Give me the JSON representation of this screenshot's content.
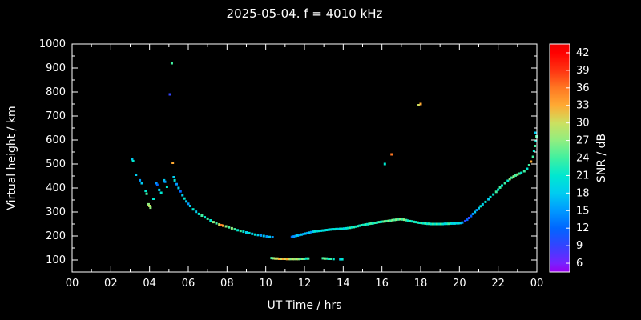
{
  "colors": {
    "background": "#000000",
    "axis": "#ffffff",
    "text": "#ffffff"
  },
  "chart_data": {
    "type": "scatter",
    "title": "2025-05-04. f = 4010 kHz",
    "xlabel": "UT Time / hrs",
    "ylabel": "Virtual height / km",
    "colorbar_label": "SNR / dB",
    "xlim": [
      0,
      24
    ],
    "ylim": [
      50,
      1000
    ],
    "x_tick_labels": [
      "00",
      "02",
      "04",
      "06",
      "08",
      "10",
      "12",
      "14",
      "16",
      "18",
      "20",
      "22",
      "00"
    ],
    "x_major_step": 2,
    "x_minor_step": 1,
    "y_ticks": [
      100,
      200,
      300,
      400,
      500,
      600,
      700,
      800,
      900,
      1000
    ],
    "y_minor_step": 50,
    "colorbar": {
      "min": 4.5,
      "max": 43.5,
      "ticks": [
        6,
        9,
        12,
        15,
        18,
        21,
        24,
        27,
        30,
        33,
        36,
        39,
        42
      ],
      "stops": [
        {
          "v": 4.5,
          "c": "#9900ee"
        },
        {
          "v": 6,
          "c": "#7722ff"
        },
        {
          "v": 9,
          "c": "#3344ff"
        },
        {
          "v": 12,
          "c": "#0066ff"
        },
        {
          "v": 15,
          "c": "#0099ff"
        },
        {
          "v": 18,
          "c": "#00ccf0"
        },
        {
          "v": 21,
          "c": "#00e8d0"
        },
        {
          "v": 24,
          "c": "#40f0a0"
        },
        {
          "v": 27,
          "c": "#90ee80"
        },
        {
          "v": 30,
          "c": "#cce060"
        },
        {
          "v": 33,
          "c": "#ffaa33"
        },
        {
          "v": 36,
          "c": "#ff7722"
        },
        {
          "v": 39,
          "c": "#ff3311"
        },
        {
          "v": 42,
          "c": "#ff0000"
        },
        {
          "v": 43.5,
          "c": "#ee0000"
        }
      ]
    },
    "point_fields": [
      "ut_hours",
      "virtual_height_km",
      "snr_db"
    ],
    "points": [
      [
        3.1,
        520,
        18
      ],
      [
        3.15,
        512,
        21
      ],
      [
        3.3,
        455,
        18
      ],
      [
        3.5,
        432,
        15
      ],
      [
        3.6,
        420,
        18
      ],
      [
        3.8,
        388,
        21
      ],
      [
        3.85,
        376,
        24
      ],
      [
        3.95,
        332,
        27
      ],
      [
        4.0,
        325,
        30
      ],
      [
        4.05,
        318,
        27
      ],
      [
        4.2,
        355,
        21
      ],
      [
        4.35,
        420,
        15
      ],
      [
        4.4,
        413,
        12
      ],
      [
        4.5,
        392,
        18
      ],
      [
        4.6,
        380,
        21
      ],
      [
        4.75,
        432,
        18
      ],
      [
        4.8,
        426,
        15
      ],
      [
        4.9,
        405,
        21
      ],
      [
        5.05,
        790,
        9
      ],
      [
        5.15,
        920,
        24
      ],
      [
        5.2,
        505,
        33
      ],
      [
        5.25,
        445,
        18
      ],
      [
        5.3,
        432,
        21
      ],
      [
        5.4,
        416,
        15
      ],
      [
        5.5,
        400,
        18
      ],
      [
        5.6,
        386,
        12
      ],
      [
        5.7,
        370,
        18
      ],
      [
        5.8,
        356,
        21
      ],
      [
        5.9,
        344,
        18
      ],
      [
        6.0,
        334,
        15
      ],
      [
        6.1,
        325,
        18
      ],
      [
        6.25,
        311,
        21
      ],
      [
        6.4,
        301,
        18
      ],
      [
        6.55,
        292,
        21
      ],
      [
        6.7,
        285,
        24
      ],
      [
        6.85,
        278,
        21
      ],
      [
        7.0,
        272,
        24
      ],
      [
        7.15,
        265,
        21
      ],
      [
        7.3,
        258,
        27
      ],
      [
        7.45,
        253,
        24
      ],
      [
        7.6,
        248,
        30
      ],
      [
        7.7,
        245,
        36
      ],
      [
        7.8,
        243,
        33
      ],
      [
        7.95,
        240,
        27
      ],
      [
        8.1,
        236,
        24
      ],
      [
        8.25,
        232,
        27
      ],
      [
        8.4,
        228,
        24
      ],
      [
        8.55,
        224,
        21
      ],
      [
        8.7,
        221,
        24
      ],
      [
        8.85,
        218,
        21
      ],
      [
        9.0,
        215,
        18
      ],
      [
        9.15,
        212,
        21
      ],
      [
        9.3,
        209,
        18
      ],
      [
        9.45,
        206,
        21
      ],
      [
        9.6,
        204,
        18
      ],
      [
        9.75,
        202,
        15
      ],
      [
        9.9,
        200,
        18
      ],
      [
        10.05,
        198,
        15
      ],
      [
        10.2,
        196,
        18
      ],
      [
        10.35,
        195,
        15
      ],
      [
        10.3,
        108,
        24
      ],
      [
        10.4,
        107,
        27
      ],
      [
        10.5,
        106,
        30
      ],
      [
        10.6,
        106,
        30
      ],
      [
        10.7,
        105,
        33
      ],
      [
        10.8,
        105,
        30
      ],
      [
        10.9,
        105,
        33
      ],
      [
        11.0,
        105,
        30
      ],
      [
        11.1,
        104,
        33
      ],
      [
        11.2,
        104,
        30
      ],
      [
        11.3,
        104,
        27
      ],
      [
        11.4,
        104,
        30
      ],
      [
        11.5,
        104,
        27
      ],
      [
        11.6,
        104,
        30
      ],
      [
        11.7,
        104,
        27
      ],
      [
        11.8,
        105,
        24
      ],
      [
        11.9,
        105,
        27
      ],
      [
        12.0,
        105,
        24
      ],
      [
        12.1,
        106,
        21
      ],
      [
        12.2,
        106,
        24
      ],
      [
        12.95,
        107,
        24
      ],
      [
        13.05,
        106,
        27
      ],
      [
        13.15,
        106,
        24
      ],
      [
        13.25,
        105,
        21
      ],
      [
        13.35,
        105,
        24
      ],
      [
        13.5,
        104,
        21
      ],
      [
        13.85,
        103,
        18
      ],
      [
        13.95,
        103,
        21
      ],
      [
        11.35,
        196,
        12
      ],
      [
        11.45,
        198,
        15
      ],
      [
        11.55,
        200,
        15
      ],
      [
        11.65,
        202,
        18
      ],
      [
        11.75,
        204,
        15
      ],
      [
        11.85,
        206,
        18
      ],
      [
        11.95,
        208,
        15
      ],
      [
        12.05,
        210,
        18
      ],
      [
        12.15,
        212,
        15
      ],
      [
        12.25,
        214,
        18
      ],
      [
        12.35,
        216,
        15
      ],
      [
        12.45,
        218,
        18
      ],
      [
        12.55,
        219,
        21
      ],
      [
        12.65,
        220,
        18
      ],
      [
        12.75,
        221,
        21
      ],
      [
        12.85,
        222,
        18
      ],
      [
        12.95,
        223,
        21
      ],
      [
        13.05,
        224,
        18
      ],
      [
        13.15,
        225,
        21
      ],
      [
        13.25,
        226,
        18
      ],
      [
        13.35,
        227,
        21
      ],
      [
        13.45,
        228,
        18
      ],
      [
        13.55,
        228,
        21
      ],
      [
        13.65,
        229,
        21
      ],
      [
        13.75,
        229,
        18
      ],
      [
        13.85,
        230,
        21
      ],
      [
        13.95,
        230,
        21
      ],
      [
        14.05,
        231,
        18
      ],
      [
        14.15,
        232,
        21
      ],
      [
        14.25,
        233,
        21
      ],
      [
        14.35,
        234,
        24
      ],
      [
        14.45,
        236,
        21
      ],
      [
        14.55,
        237,
        24
      ],
      [
        14.65,
        239,
        21
      ],
      [
        14.75,
        241,
        24
      ],
      [
        14.85,
        243,
        21
      ],
      [
        14.95,
        245,
        24
      ],
      [
        15.05,
        246,
        21
      ],
      [
        15.15,
        248,
        24
      ],
      [
        15.25,
        249,
        21
      ],
      [
        15.35,
        251,
        24
      ],
      [
        15.45,
        252,
        24
      ],
      [
        15.55,
        253,
        21
      ],
      [
        15.65,
        255,
        24
      ],
      [
        15.75,
        256,
        21
      ],
      [
        15.85,
        258,
        24
      ],
      [
        15.95,
        259,
        21
      ],
      [
        16.05,
        260,
        24
      ],
      [
        16.15,
        261,
        27
      ],
      [
        16.25,
        262,
        24
      ],
      [
        16.35,
        263,
        27
      ],
      [
        16.45,
        264,
        24
      ],
      [
        16.55,
        266,
        27
      ],
      [
        16.65,
        267,
        24
      ],
      [
        16.75,
        268,
        27
      ],
      [
        16.85,
        269,
        24
      ],
      [
        16.95,
        270,
        27
      ],
      [
        17.05,
        269,
        24
      ],
      [
        17.15,
        268,
        27
      ],
      [
        17.25,
        266,
        24
      ],
      [
        17.35,
        264,
        21
      ],
      [
        17.45,
        262,
        24
      ],
      [
        17.55,
        261,
        21
      ],
      [
        17.65,
        259,
        24
      ],
      [
        17.75,
        258,
        21
      ],
      [
        17.85,
        256,
        24
      ],
      [
        17.95,
        255,
        21
      ],
      [
        18.05,
        254,
        24
      ],
      [
        18.15,
        253,
        21
      ],
      [
        18.25,
        252,
        24
      ],
      [
        18.35,
        251,
        21
      ],
      [
        18.45,
        251,
        24
      ],
      [
        18.55,
        250,
        21
      ],
      [
        18.65,
        250,
        24
      ],
      [
        18.75,
        250,
        21
      ],
      [
        18.85,
        250,
        24
      ],
      [
        18.95,
        250,
        21
      ],
      [
        19.05,
        250,
        24
      ],
      [
        19.15,
        250,
        21
      ],
      [
        19.25,
        251,
        18
      ],
      [
        19.35,
        251,
        21
      ],
      [
        19.45,
        251,
        24
      ],
      [
        19.55,
        252,
        21
      ],
      [
        19.65,
        252,
        18
      ],
      [
        19.75,
        252,
        21
      ],
      [
        19.85,
        253,
        18
      ],
      [
        19.95,
        253,
        21
      ],
      [
        20.05,
        254,
        18
      ],
      [
        20.15,
        256,
        15
      ],
      [
        20.3,
        262,
        9
      ],
      [
        20.4,
        268,
        12
      ],
      [
        20.5,
        275,
        9
      ],
      [
        20.6,
        283,
        12
      ],
      [
        20.7,
        292,
        15
      ],
      [
        20.8,
        300,
        18
      ],
      [
        20.9,
        308,
        15
      ],
      [
        21.0,
        316,
        18
      ],
      [
        21.1,
        324,
        21
      ],
      [
        21.2,
        332,
        18
      ],
      [
        21.35,
        342,
        21
      ],
      [
        21.5,
        353,
        18
      ],
      [
        21.6,
        362,
        21
      ],
      [
        21.75,
        373,
        21
      ],
      [
        21.9,
        384,
        24
      ],
      [
        22.0,
        393,
        21
      ],
      [
        22.1,
        402,
        24
      ],
      [
        22.2,
        410,
        21
      ],
      [
        22.35,
        420,
        24
      ],
      [
        22.5,
        430,
        21
      ],
      [
        22.6,
        437,
        27
      ],
      [
        22.7,
        443,
        24
      ],
      [
        22.8,
        448,
        27
      ],
      [
        22.9,
        452,
        24
      ],
      [
        23.0,
        456,
        27
      ],
      [
        23.1,
        460,
        24
      ],
      [
        23.2,
        463,
        21
      ],
      [
        23.35,
        470,
        24
      ],
      [
        23.5,
        480,
        21
      ],
      [
        23.6,
        495,
        24
      ],
      [
        23.7,
        510,
        33
      ],
      [
        23.8,
        530,
        24
      ],
      [
        23.85,
        555,
        21
      ],
      [
        23.9,
        575,
        24
      ],
      [
        23.95,
        595,
        21
      ],
      [
        23.98,
        615,
        24
      ],
      [
        23.92,
        630,
        18
      ],
      [
        16.15,
        500,
        21
      ],
      [
        16.5,
        540,
        36
      ],
      [
        17.9,
        745,
        30
      ],
      [
        18.0,
        750,
        33
      ]
    ]
  }
}
